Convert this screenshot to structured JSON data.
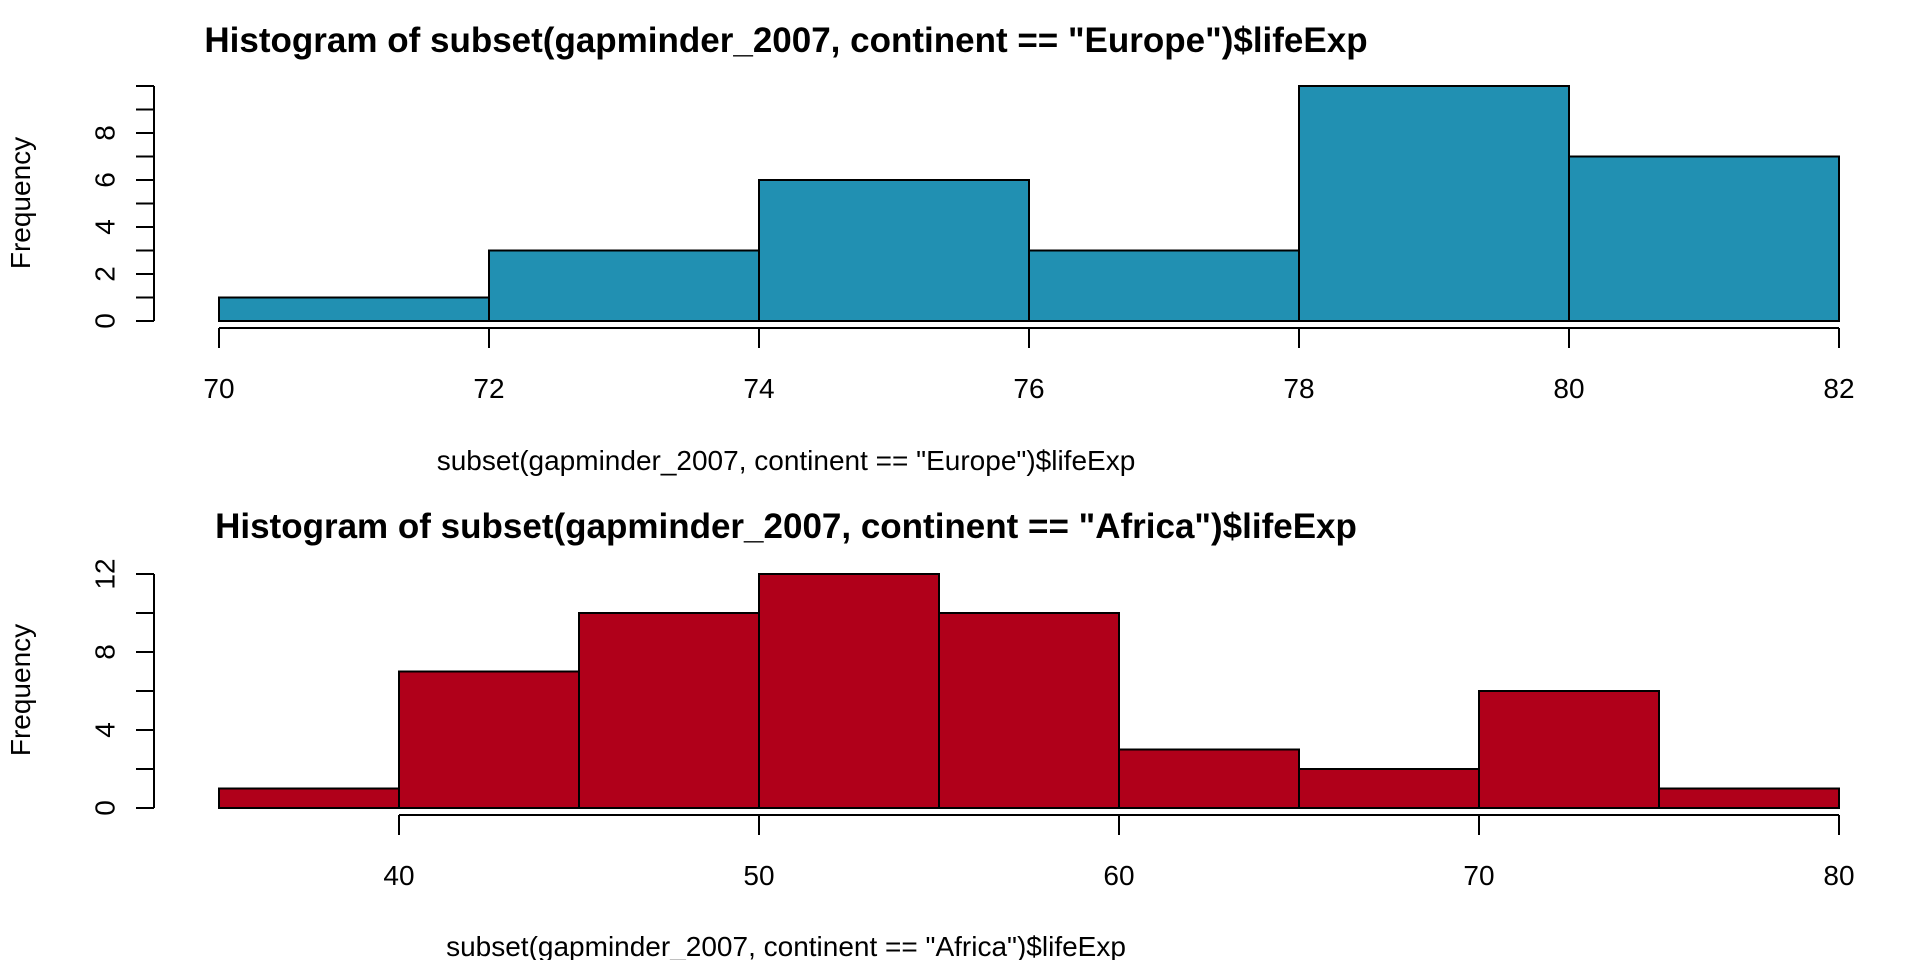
{
  "chart_data": [
    {
      "type": "bar",
      "title": "Histogram of subset(gapminder_2007, continent == \"Europe\")$lifeExp",
      "xlabel": "subset(gapminder_2007, continent == \"Europe\")$lifeExp",
      "ylabel": "Frequency",
      "color": "#2190b2",
      "bins": [
        {
          "from": 70,
          "to": 72,
          "count": 1
        },
        {
          "from": 72,
          "to": 74,
          "count": 3
        },
        {
          "from": 74,
          "to": 76,
          "count": 6
        },
        {
          "from": 76,
          "to": 78,
          "count": 3
        },
        {
          "from": 78,
          "to": 80,
          "count": 10
        },
        {
          "from": 80,
          "to": 82,
          "count": 7
        }
      ],
      "xlim": [
        70,
        82
      ],
      "ylim": [
        0,
        10
      ],
      "xticks": [
        70,
        72,
        74,
        76,
        78,
        80,
        82
      ],
      "yticks_major": [
        0,
        2,
        4,
        6,
        8
      ],
      "yticks_minor": [
        1,
        3,
        5,
        7,
        9,
        10
      ],
      "grid": false
    },
    {
      "type": "bar",
      "title": "Histogram of subset(gapminder_2007, continent == \"Africa\")$lifeExp",
      "xlabel": "subset(gapminder_2007, continent == \"Africa\")$lifeExp",
      "ylabel": "Frequency",
      "color": "#b0001a",
      "bins": [
        {
          "from": 35,
          "to": 40,
          "count": 1
        },
        {
          "from": 40,
          "to": 45,
          "count": 7
        },
        {
          "from": 45,
          "to": 50,
          "count": 10
        },
        {
          "from": 50,
          "to": 55,
          "count": 12
        },
        {
          "from": 55,
          "to": 60,
          "count": 10
        },
        {
          "from": 60,
          "to": 65,
          "count": 3
        },
        {
          "from": 65,
          "to": 70,
          "count": 2
        },
        {
          "from": 70,
          "to": 75,
          "count": 6
        },
        {
          "from": 75,
          "to": 80,
          "count": 1
        }
      ],
      "xlim": [
        35,
        80
      ],
      "ylim": [
        0,
        12
      ],
      "xticks": [
        40,
        50,
        60,
        70,
        80
      ],
      "yticks_major": [
        0,
        4,
        8,
        12
      ],
      "yticks_minor": [
        2,
        6,
        10
      ],
      "grid": false
    }
  ]
}
